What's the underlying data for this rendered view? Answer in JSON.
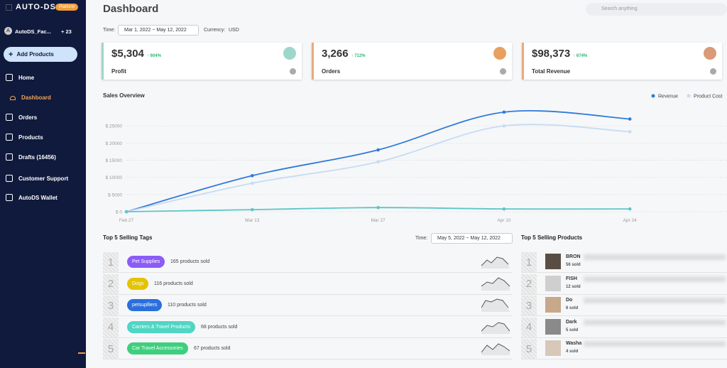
{
  "sidebar": {
    "brand": "AUTO-DS-",
    "badge": "Platform",
    "account": {
      "initial": "A",
      "name": "AutoDS_Fac...",
      "extra": "+ 23"
    },
    "add_button": "Add Products",
    "nav": [
      "Home",
      "Dashboard",
      "Orders",
      "Products",
      "Drafts (16456)",
      "Customer Support",
      "AutoDS Wallet"
    ]
  },
  "header": {
    "title": "Dashboard",
    "search_placeholder": "Search anything"
  },
  "filters": {
    "time_label": "Time:",
    "date_start": "Mar 1, 2022",
    "date_sep": "~",
    "date_end": "May 12, 2022",
    "currency_label": "Currency:",
    "currency": "USD"
  },
  "cards": [
    {
      "value": "$5,304",
      "change": "↑ 604%",
      "label": "Profit"
    },
    {
      "value": "3,266",
      "change": "↑ 712%",
      "label": "Orders"
    },
    {
      "value": "$98,373",
      "change": "↑ 674%",
      "label": "Total Revenue"
    }
  ],
  "chart_data": {
    "type": "line",
    "title": "Sales Overview",
    "categories": [
      "Feb 27",
      "Mar 13",
      "Mar 27",
      "Apr 10",
      "Apr 24"
    ],
    "series": [
      {
        "name": "Revenue",
        "color": "#2f7bd8",
        "values": [
          0,
          10500,
          18000,
          29000,
          27000
        ]
      },
      {
        "name": "Product Cost",
        "color": "#c6dcf3",
        "values": [
          0,
          8300,
          14500,
          25000,
          23300
        ]
      },
      {
        "color": "#5cc6c6",
        "values": [
          0,
          600,
          1200,
          800,
          800
        ]
      }
    ],
    "ylim": [
      0,
      30000
    ],
    "yticks": [
      {
        "value": 0,
        "label": "$ 0"
      },
      {
        "value": 5000,
        "label": "$ 5000"
      },
      {
        "value": 10000,
        "label": "$ 10000"
      },
      {
        "value": 15000,
        "label": "$ 15000"
      },
      {
        "value": 20000,
        "label": "$ 20000"
      },
      {
        "value": 25000,
        "label": "$ 25000"
      }
    ],
    "grid": true
  },
  "top_tags": {
    "title": "Top 5 Selling Tags",
    "time_label": "Time:",
    "date_start": "May 5, 2022",
    "date_sep": "~",
    "date_end": "May 12, 2022",
    "rows": [
      {
        "rank": 1,
        "tag": "Pet Supplies",
        "color": "#8b5cf6",
        "sold": "165 products sold"
      },
      {
        "rank": 2,
        "tag": "Dogs",
        "color": "#e3c400",
        "sold": "116 products sold"
      },
      {
        "rank": 3,
        "tag": "petsuplliers",
        "color": "#2a6fdb",
        "sold": "110 products sold"
      },
      {
        "rank": 4,
        "tag": "Carriers & Travel Products",
        "color": "#4fd6c4",
        "sold": "68 products sold"
      },
      {
        "rank": 5,
        "tag": "Car Travel Accessories",
        "color": "#3ecf7e",
        "sold": "67 products sold"
      }
    ]
  },
  "top_products": {
    "title": "Top 5 Selling Products",
    "rows": [
      {
        "rank": 1,
        "name": "BRON",
        "sold": "56 sold"
      },
      {
        "rank": 2,
        "name": "FISH",
        "sold": "12 sold"
      },
      {
        "rank": 3,
        "name": "Do",
        "sold": "6 sold"
      },
      {
        "rank": 4,
        "name": "Dark",
        "sold": "5 sold"
      },
      {
        "rank": 5,
        "name": "Washa",
        "sold": "4 sold"
      }
    ]
  }
}
